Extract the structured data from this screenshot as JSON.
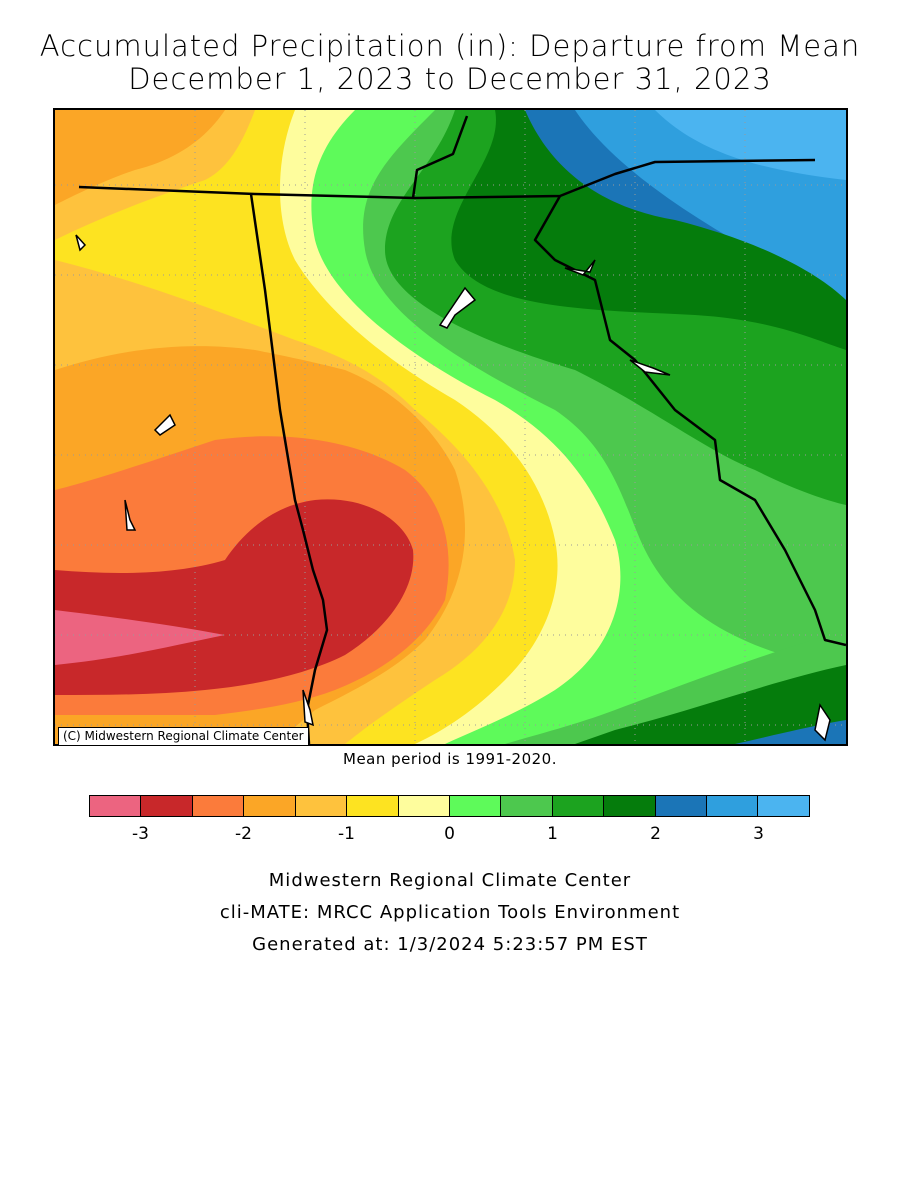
{
  "title_line1": "Accumulated Precipitation (in): Departure from Mean",
  "title_line2": "December 1, 2023 to December 31, 2023",
  "credit": "(C) Midwestern Regional Climate Center",
  "mean_period": "Mean period is 1991-2020.",
  "legend": {
    "unit": "in",
    "classes": [
      {
        "range": "< -3",
        "color": "#ec6480"
      },
      {
        "range": "-3 to -2.5",
        "color": "#c8282a"
      },
      {
        "range": "-2.5 to -2",
        "color": "#fb7b3b"
      },
      {
        "range": "-2 to -1.5",
        "color": "#fba626"
      },
      {
        "range": "-1.5 to -1",
        "color": "#fec23d"
      },
      {
        "range": "-1 to -0.5",
        "color": "#fde321"
      },
      {
        "range": "-0.5 to 0",
        "color": "#fefd9d"
      },
      {
        "range": "0 to 0.5",
        "color": "#5efa5a"
      },
      {
        "range": "0.5 to 1",
        "color": "#4dc84e"
      },
      {
        "range": "1 to 1.5",
        "color": "#1ca31f"
      },
      {
        "range": "1.5 to 2",
        "color": "#057c0c"
      },
      {
        "range": "2 to 2.5",
        "color": "#1b75b7"
      },
      {
        "range": "2.5 to 3",
        "color": "#2f9fde"
      },
      {
        "range": "> 3",
        "color": "#4bb4f0"
      }
    ],
    "tick_labels": [
      "-3",
      "-2",
      "-1",
      "0",
      "1",
      "2",
      "3"
    ]
  },
  "footer": {
    "line1": "Midwestern Regional Climate Center",
    "line2": "cli-MATE: MRCC Application Tools Environment",
    "line3": "Generated at: 1/3/2024 5:23:57 PM EST"
  }
}
